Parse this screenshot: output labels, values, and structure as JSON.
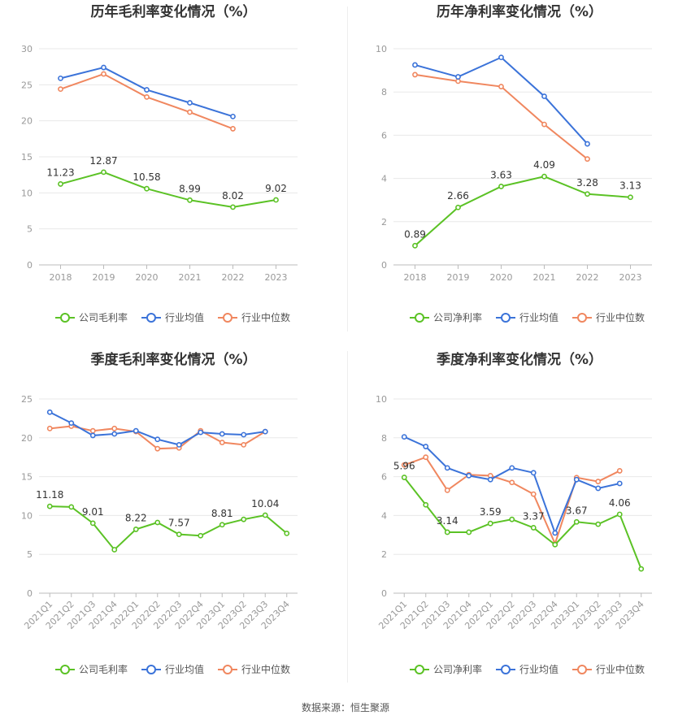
{
  "source": "数据来源：恒生聚源",
  "legend_labels": {
    "gross": [
      "公司毛利率",
      "行业均值",
      "行业中位数"
    ],
    "net": [
      "公司净利率",
      "行业均值",
      "行业中位数"
    ]
  },
  "colors": {
    "company": "#5bc225",
    "industry_avg": "#3b73d9",
    "industry_median": "#f0875f",
    "grid": "#e8e8e8",
    "axis_text": "#999999",
    "title": "#333333"
  },
  "chart_data": [
    {
      "id": "annual-gross",
      "type": "line",
      "title": "历年毛利率变化情况（%）",
      "categories": [
        "2018",
        "2019",
        "2020",
        "2021",
        "2022",
        "2023"
      ],
      "ylim": [
        0,
        30
      ],
      "yticks": [
        0,
        5,
        10,
        15,
        20,
        25,
        30
      ],
      "series": [
        {
          "name": "公司毛利率",
          "values": [
            11.23,
            12.87,
            10.58,
            8.99,
            8.02,
            9.02
          ],
          "labels": [
            "11.23",
            "12.87",
            "10.58",
            "8.99",
            "8.02",
            "9.02"
          ]
        },
        {
          "name": "行业均值",
          "values": [
            25.9,
            27.4,
            24.3,
            22.5,
            20.6,
            null
          ]
        },
        {
          "name": "行业中位数",
          "values": [
            24.4,
            26.5,
            23.3,
            21.2,
            18.9,
            null
          ]
        }
      ]
    },
    {
      "id": "annual-net",
      "type": "line",
      "title": "历年净利率变化情况（%）",
      "categories": [
        "2018",
        "2019",
        "2020",
        "2021",
        "2022",
        "2023"
      ],
      "ylim": [
        0,
        10
      ],
      "yticks": [
        0,
        2,
        4,
        6,
        8,
        10
      ],
      "series": [
        {
          "name": "公司净利率",
          "values": [
            0.89,
            2.66,
            3.63,
            4.09,
            3.28,
            3.13
          ],
          "labels": [
            "0.89",
            "2.66",
            "3.63",
            "4.09",
            "3.28",
            "3.13"
          ]
        },
        {
          "name": "行业均值",
          "values": [
            9.25,
            8.7,
            9.6,
            7.8,
            5.6,
            null
          ]
        },
        {
          "name": "行业中位数",
          "values": [
            8.8,
            8.5,
            8.25,
            6.5,
            4.9,
            null
          ]
        }
      ]
    },
    {
      "id": "quarter-gross",
      "type": "line",
      "title": "季度毛利率变化情况（%）",
      "categories": [
        "2021Q1",
        "2021Q2",
        "2021Q3",
        "2021Q4",
        "2022Q1",
        "2022Q2",
        "2022Q3",
        "2022Q4",
        "2023Q1",
        "2023Q2",
        "2023Q3",
        "2023Q4"
      ],
      "ylim": [
        0,
        25
      ],
      "yticks": [
        0,
        5,
        10,
        15,
        20,
        25
      ],
      "series": [
        {
          "name": "公司毛利率",
          "values": [
            11.18,
            11.1,
            9.01,
            5.6,
            8.22,
            9.1,
            7.57,
            7.4,
            8.81,
            9.5,
            10.04,
            7.7
          ],
          "labels": [
            "11.18",
            "",
            "9.01",
            "",
            "8.22",
            "",
            "7.57",
            "",
            "8.81",
            "",
            "10.04",
            ""
          ]
        },
        {
          "name": "行业均值",
          "values": [
            23.3,
            21.9,
            20.3,
            20.5,
            20.9,
            19.8,
            19.1,
            20.7,
            20.5,
            20.4,
            20.8,
            null
          ]
        },
        {
          "name": "行业中位数",
          "values": [
            21.2,
            21.5,
            20.9,
            21.2,
            20.8,
            18.6,
            18.7,
            20.9,
            19.4,
            19.1,
            20.8,
            null
          ]
        }
      ]
    },
    {
      "id": "quarter-net",
      "type": "line",
      "title": "季度净利率变化情况（%）",
      "categories": [
        "2021Q1",
        "2021Q2",
        "2021Q3",
        "2021Q4",
        "2022Q1",
        "2022Q2",
        "2022Q3",
        "2022Q4",
        "2023Q1",
        "2023Q2",
        "2023Q3",
        "2023Q4"
      ],
      "ylim": [
        0,
        10
      ],
      "yticks": [
        0,
        2,
        4,
        6,
        8,
        10
      ],
      "series": [
        {
          "name": "公司净利率",
          "values": [
            5.96,
            4.55,
            3.14,
            3.14,
            3.59,
            3.8,
            3.37,
            2.5,
            3.67,
            3.55,
            4.06,
            1.25
          ],
          "labels": [
            "5.96",
            "",
            "3.14",
            "",
            "3.59",
            "",
            "3.37",
            "",
            "3.67",
            "",
            "4.06",
            ""
          ]
        },
        {
          "name": "行业均值",
          "values": [
            8.05,
            7.55,
            6.45,
            6.05,
            5.85,
            6.45,
            6.2,
            3.1,
            5.85,
            5.4,
            5.65,
            null
          ]
        },
        {
          "name": "行业中位数",
          "values": [
            6.6,
            7.0,
            5.3,
            6.1,
            6.05,
            5.7,
            5.1,
            2.55,
            5.95,
            5.75,
            6.3,
            null
          ]
        }
      ]
    }
  ]
}
